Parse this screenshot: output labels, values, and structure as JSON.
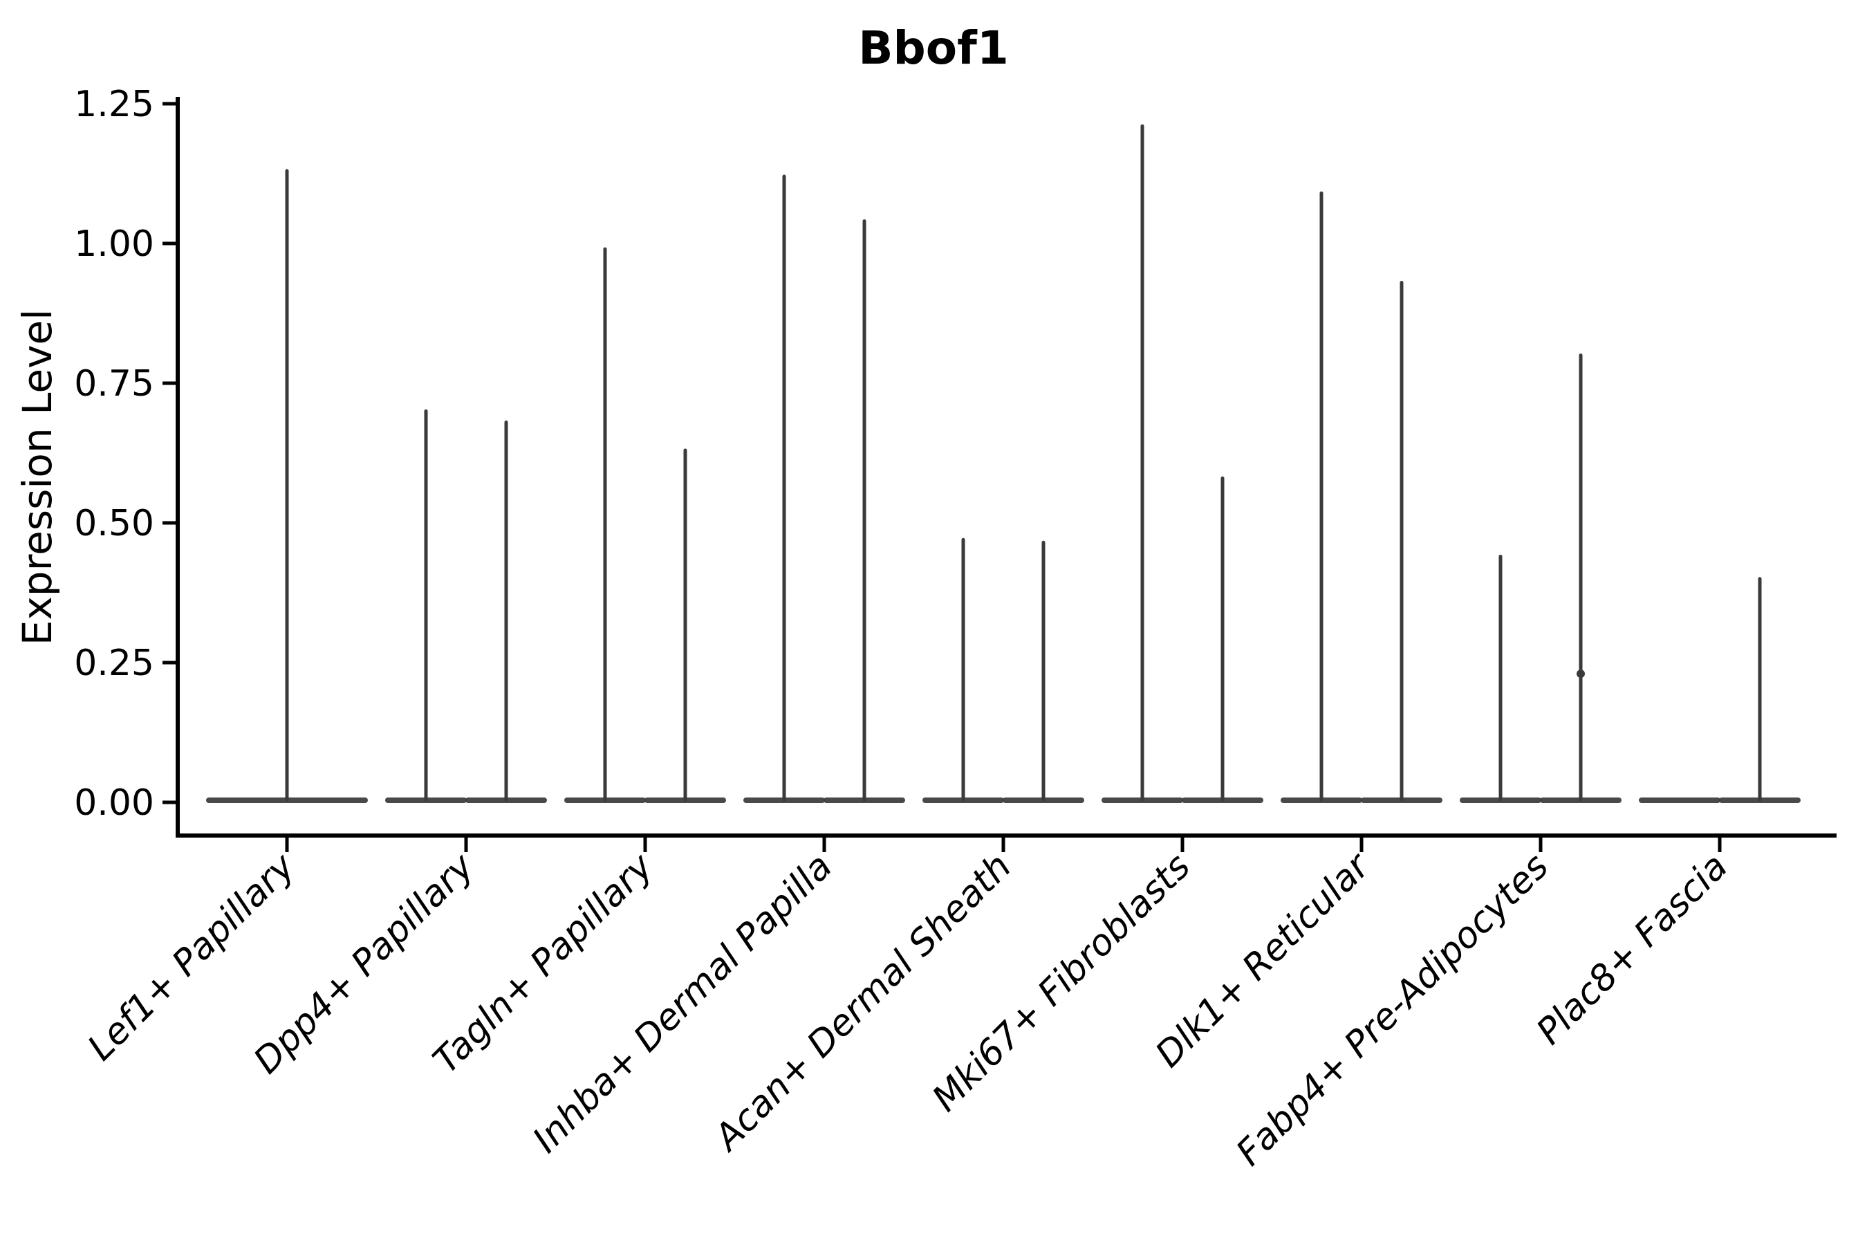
{
  "chart_data": {
    "type": "violin",
    "title": "Bbof1",
    "ylabel": "Expression Level",
    "xlabel": "",
    "ylim": [
      0,
      1.25
    ],
    "yticks": [
      0,
      0.25,
      0.5,
      0.75,
      1,
      1.25
    ],
    "ytick_labels": [
      "0.00",
      "0.25",
      "0.50",
      "0.75",
      "1.00",
      "1.25"
    ],
    "grid": false,
    "legend_position": "none",
    "x_label_rotation_deg": 45,
    "violin_color": "#3a3a3a",
    "axis_color": "#000000",
    "categories": [
      "Lef1+ Papillary",
      "Dpp4+ Papillary",
      "Tagln+ Papillary",
      "Inhba+ Dermal Papilla",
      "Acan+ Dermal Sheath",
      "Mki67+ Fibroblasts",
      "Dlk1+ Reticular",
      "Fabp4+ Pre-Adipocytes",
      "Plac8+ Fascia"
    ],
    "series": [
      {
        "category": "Lef1+ Papillary",
        "violins": [
          {
            "position": "center",
            "max": 1.13
          }
        ]
      },
      {
        "category": "Dpp4+ Papillary",
        "violins": [
          {
            "position": "left",
            "max": 0.7
          },
          {
            "position": "right",
            "max": 0.68
          }
        ]
      },
      {
        "category": "Tagln+ Papillary",
        "violins": [
          {
            "position": "left",
            "max": 0.99
          },
          {
            "position": "right",
            "max": 0.63
          }
        ]
      },
      {
        "category": "Inhba+ Dermal Papilla",
        "violins": [
          {
            "position": "left",
            "max": 1.12
          },
          {
            "position": "right",
            "max": 1.04
          }
        ]
      },
      {
        "category": "Acan+ Dermal Sheath",
        "violins": [
          {
            "position": "left",
            "max": 0.47
          },
          {
            "position": "right",
            "max": 0.465
          }
        ]
      },
      {
        "category": "Mki67+ Fibroblasts",
        "violins": [
          {
            "position": "left",
            "max": 1.21
          },
          {
            "position": "right",
            "max": 0.58
          }
        ]
      },
      {
        "category": "Dlk1+ Reticular",
        "violins": [
          {
            "position": "left",
            "max": 1.09
          },
          {
            "position": "right",
            "max": 0.93
          }
        ]
      },
      {
        "category": "Fabp4+ Pre-Adipocytes",
        "violins": [
          {
            "position": "left",
            "max": 0.44
          },
          {
            "position": "right",
            "max": 0.8,
            "bump_at": 0.23
          }
        ]
      },
      {
        "category": "Plac8+ Fascia",
        "violins": [
          {
            "position": "left",
            "max": 0.0
          },
          {
            "position": "right",
            "max": 0.4
          }
        ]
      }
    ]
  }
}
